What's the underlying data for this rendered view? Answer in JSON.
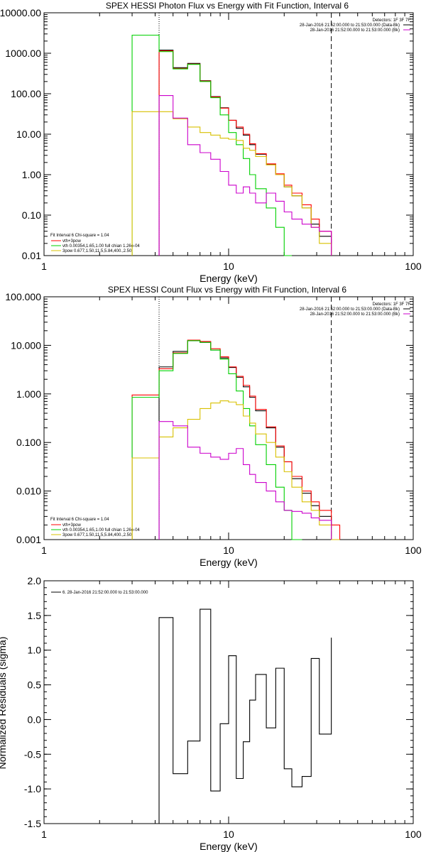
{
  "chart_data": [
    {
      "type": "line",
      "title": "SPEX HESSI Photon Flux vs Energy with Fit Function, Interval 6",
      "xlabel": "Energy (keV)",
      "ylabel": "",
      "xscale": "log",
      "yscale": "log",
      "xlim": [
        1,
        100
      ],
      "ylim": [
        0.01,
        10000
      ],
      "x_ticks": [
        "1",
        "10",
        "100"
      ],
      "y_ticks": [
        "10000.00",
        "1000.00",
        "100.00",
        "10.00",
        "1.00",
        "0.10",
        "0.01"
      ],
      "vlines": [
        {
          "x": 4.2,
          "style": "dotted"
        },
        {
          "x": 36.0,
          "style": "dashed"
        }
      ],
      "header_lines": [
        "Detectors: 1F 3F 7F",
        "28-Jan-2016 21:52:00.000 to 21:53:00.000 (Data-Bk)",
        "28-Jan-2016 21:52:00.000 to 21:53:00.000 (Bk)"
      ],
      "header_swatches": [
        "#000000",
        "#cc00cc"
      ],
      "legend_title": "Fit Interval 6   Chi-square = 1.04",
      "legend_entries": [
        {
          "label": "vth+3pow",
          "color": "#ff0000"
        },
        {
          "label": "vth 0.00354,1.65,1.00  full chian 1.26e-04",
          "color": "#00d000"
        },
        {
          "label": "3pow 0.677,1.50,11.5,5.84,400.,2.50",
          "color": "#d8c000"
        }
      ],
      "edges": [
        3.0,
        4.2,
        5.0,
        6.0,
        7.0,
        8.0,
        9.0,
        10.0,
        11.0,
        12.0,
        13.0,
        14.0,
        16.0,
        18.0,
        20.0,
        22.0,
        25.0,
        28.0,
        31.0,
        36.0
      ],
      "series": [
        {
          "name": "Data-Bk",
          "color": "#000000",
          "values": [
            null,
            1200,
            440,
            560,
            210,
            85,
            45,
            22,
            14,
            9.5,
            5.5,
            3.2,
            1.8,
            1.0,
            0.5,
            0.3,
            0.15,
            0.06,
            0.03
          ]
        },
        {
          "name": "vth+3pow",
          "color": "#ff0000",
          "values": [
            null,
            1150,
            420,
            540,
            205,
            83,
            44,
            22,
            15,
            10,
            5.8,
            3.3,
            1.85,
            1.05,
            0.55,
            0.35,
            0.18,
            0.08,
            0.04
          ]
        },
        {
          "name": "vth",
          "color": "#00d000",
          "values": [
            2800,
            1100,
            410,
            530,
            200,
            80,
            30,
            11,
            5.5,
            2.5,
            1.0,
            0.45,
            0.15,
            0.05,
            0.01,
            null,
            null,
            null,
            null
          ]
        },
        {
          "name": "3pow",
          "color": "#d8c000",
          "values": [
            36,
            36,
            24,
            15,
            11,
            9.5,
            8,
            7.5,
            7,
            4.5,
            4.0,
            2.8,
            1.75,
            1.0,
            0.5,
            0.3,
            0.15,
            0.05,
            0.02
          ]
        },
        {
          "name": "Bk",
          "color": "#cc00cc",
          "values": [
            null,
            90,
            25,
            5.5,
            3.5,
            2.4,
            1.2,
            0.55,
            0.35,
            0.5,
            0.35,
            0.2,
            0.35,
            0.22,
            0.12,
            0.08,
            0.06,
            0.05,
            0.04
          ]
        }
      ]
    },
    {
      "type": "line",
      "title": "SPEX HESSI Count Flux vs Energy with Fit Function, Interval 6",
      "xlabel": "Energy (keV)",
      "ylabel": "",
      "xscale": "log",
      "yscale": "log",
      "xlim": [
        1,
        100
      ],
      "ylim": [
        0.001,
        100
      ],
      "x_ticks": [
        "1",
        "10",
        "100"
      ],
      "y_ticks": [
        "100.000",
        "10.000",
        "1.000",
        "0.100",
        "0.010",
        "0.001"
      ],
      "vlines": [
        {
          "x": 4.2,
          "style": "dotted"
        },
        {
          "x": 36.0,
          "style": "dashed"
        }
      ],
      "header_lines": [
        "Detectors: 1F 3F 7F",
        "28-Jan-2016 21:52:00.000 to 21:53:00.000 (Data-Bk)",
        "28-Jan-2016 21:52:00.000 to 21:53:00.000 (Bk)"
      ],
      "header_swatches": [
        "#000000",
        "#cc00cc"
      ],
      "legend_title": "Fit Interval 6   Chi-square = 1.04",
      "legend_entries": [
        {
          "label": "vth+3pow",
          "color": "#ff0000"
        },
        {
          "label": "vth 0.00354,1.65,1.00  full chian 1.26e-04",
          "color": "#00d000"
        },
        {
          "label": "3pow 0.677,1.50,11.5,5.84,400.,2.50",
          "color": "#d8c000"
        }
      ],
      "edges": [
        3.0,
        4.2,
        5.0,
        6.0,
        7.0,
        8.0,
        9.0,
        10.0,
        11.0,
        12.0,
        13.0,
        14.0,
        16.0,
        18.0,
        20.0,
        22.0,
        25.0,
        28.0,
        31.0,
        36.0,
        40.0
      ],
      "series": [
        {
          "name": "Data-Bk",
          "color": "#000000",
          "values": [
            null,
            3.6,
            7.5,
            12.5,
            11.5,
            8.0,
            5.5,
            3.5,
            2.2,
            1.4,
            0.85,
            0.45,
            0.2,
            0.08,
            0.04,
            0.018,
            0.009,
            0.005,
            0.003,
            null
          ]
        },
        {
          "name": "vth+3pow",
          "color": "#ff0000",
          "values": [
            0.95,
            3.3,
            7.0,
            12.8,
            12.0,
            8.5,
            5.8,
            3.6,
            2.3,
            1.5,
            0.9,
            0.48,
            0.21,
            0.085,
            0.04,
            0.02,
            0.01,
            0.006,
            0.004,
            0.002
          ]
        },
        {
          "name": "vth",
          "color": "#00d000",
          "values": [
            0.85,
            3.0,
            6.8,
            12.5,
            11.5,
            8.0,
            5.2,
            2.6,
            1.15,
            0.5,
            0.22,
            0.09,
            0.035,
            0.012,
            0.004,
            0.001,
            null,
            null,
            null,
            null
          ]
        },
        {
          "name": "3pow",
          "color": "#d8c000",
          "values": [
            0.048,
            0.13,
            0.2,
            0.3,
            0.5,
            0.65,
            0.72,
            0.68,
            0.6,
            0.35,
            0.25,
            0.15,
            0.1,
            0.05,
            0.025,
            0.012,
            0.006,
            0.004,
            0.002,
            0.001
          ]
        },
        {
          "name": "Bk",
          "color": "#cc00cc",
          "values": [
            null,
            0.27,
            0.22,
            0.08,
            0.06,
            0.05,
            0.045,
            0.06,
            0.075,
            0.035,
            0.022,
            0.015,
            0.01,
            0.006,
            0.004,
            0.0038,
            0.0035,
            0.0028,
            0.0025,
            null
          ]
        }
      ]
    },
    {
      "type": "line",
      "title": "",
      "xlabel": "Energy (keV)",
      "ylabel": "Normalized Residuals (sigma)",
      "xscale": "log",
      "yscale": "linear",
      "xlim": [
        1,
        100
      ],
      "ylim": [
        -1.5,
        2.0
      ],
      "x_ticks": [
        "1",
        "10",
        "100"
      ],
      "y_ticks": [
        "2.0",
        "1.5",
        "1.0",
        "0.5",
        "0.0",
        "-0.5",
        "-1.0",
        "-1.5"
      ],
      "legend_entries": [
        {
          "label": "6. 28-Jan-2016 21:52:00.000 to 21:53:00.000",
          "color": "#000000"
        }
      ],
      "edges": [
        4.2,
        5.0,
        6.0,
        7.0,
        8.0,
        9.0,
        10.0,
        11.0,
        12.0,
        13.0,
        14.0,
        16.0,
        18.0,
        20.0,
        22.0,
        25.0,
        28.0,
        31.0,
        36.0
      ],
      "series": [
        {
          "name": "",
          "color": "#000000",
          "values": [
            1.47,
            -0.78,
            -0.31,
            1.59,
            -1.03,
            -0.06,
            0.92,
            -0.85,
            -0.32,
            0.28,
            0.65,
            -0.12,
            0.74,
            -0.71,
            -0.97,
            -0.82,
            0.88,
            -0.21,
            1.18
          ]
        }
      ]
    }
  ]
}
